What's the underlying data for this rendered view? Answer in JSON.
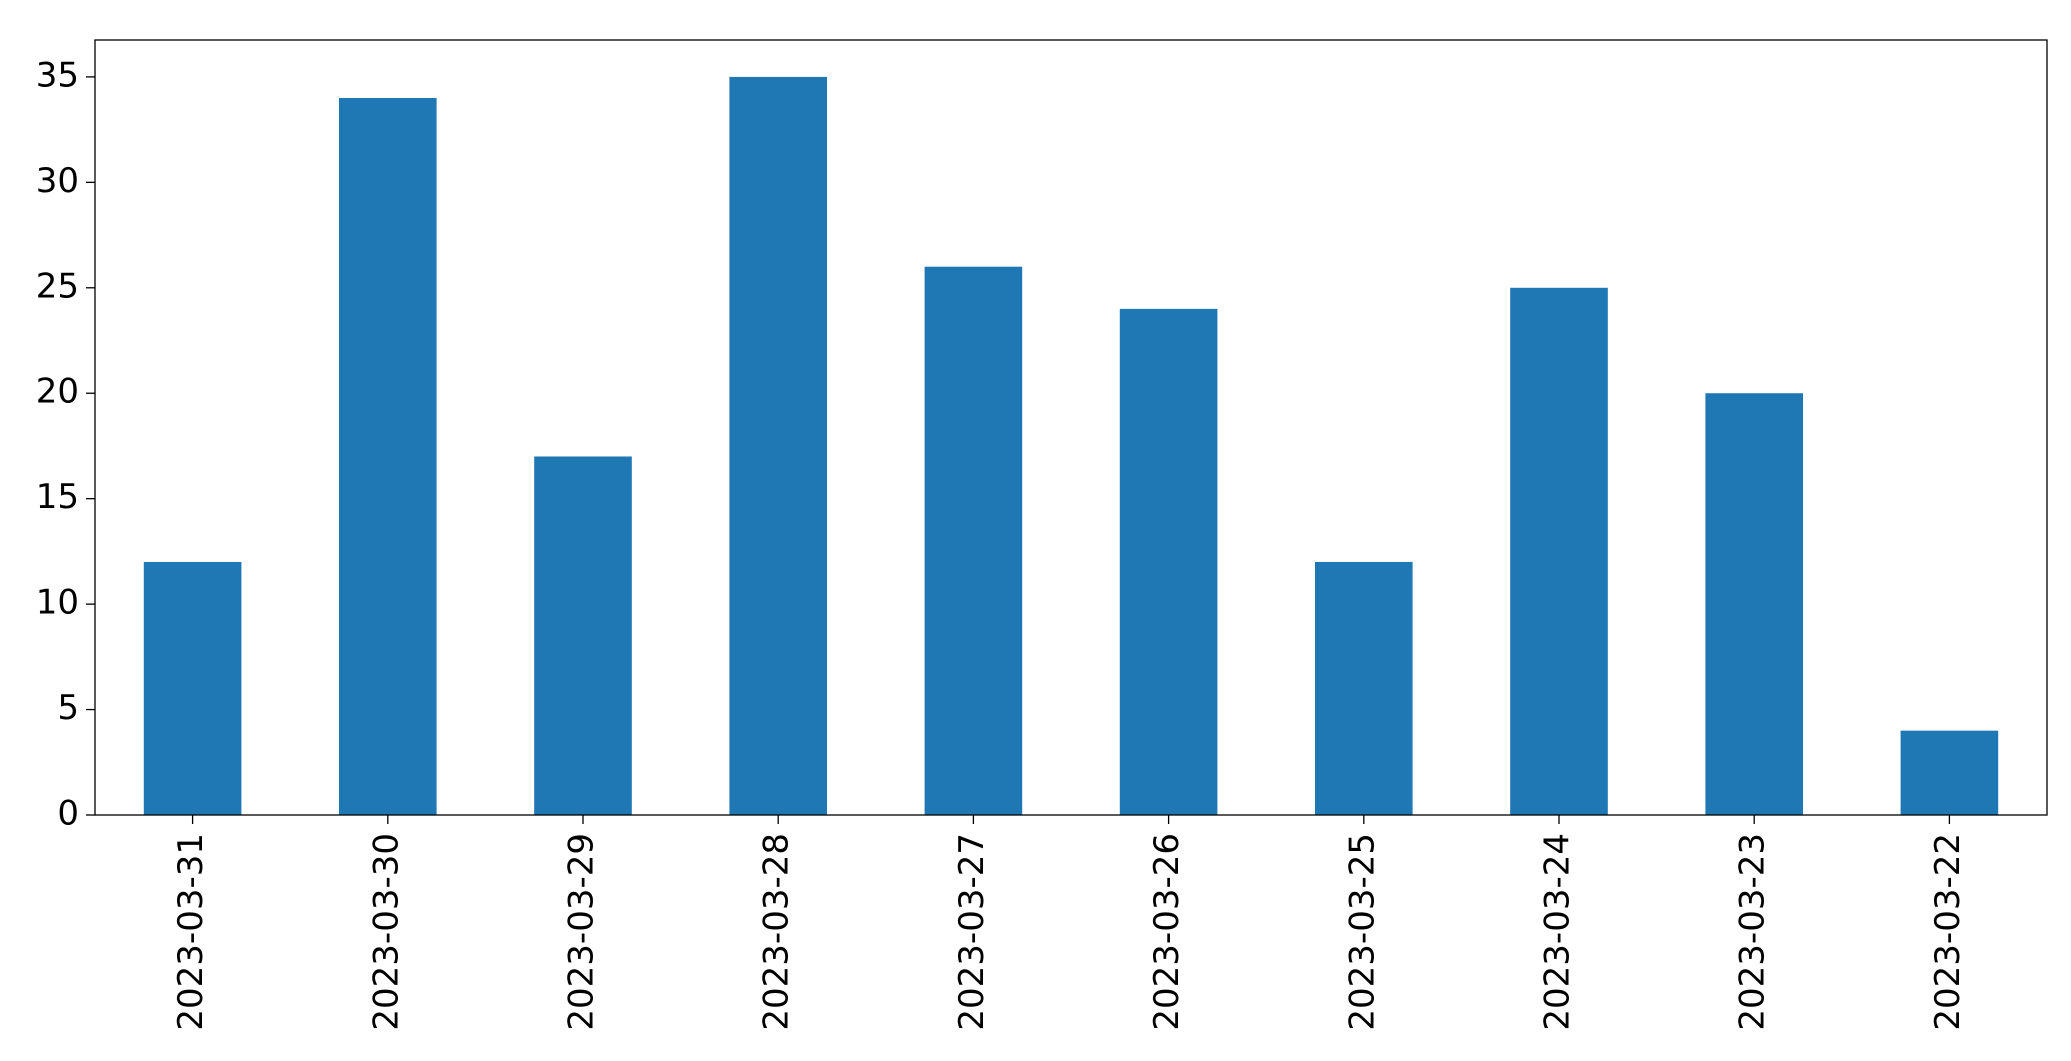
{
  "chart_data": {
    "type": "bar",
    "categories": [
      "2023-03-31",
      "2023-03-30",
      "2023-03-29",
      "2023-03-28",
      "2023-03-27",
      "2023-03-26",
      "2023-03-25",
      "2023-03-24",
      "2023-03-23",
      "2023-03-22"
    ],
    "values": [
      12,
      34,
      17,
      35,
      26,
      24,
      12,
      25,
      20,
      4
    ],
    "color": "#1f77b4",
    "ylim": [
      0,
      36.75
    ],
    "yticks": [
      0,
      5,
      10,
      15,
      20,
      25,
      30,
      35
    ],
    "grid": false
  }
}
